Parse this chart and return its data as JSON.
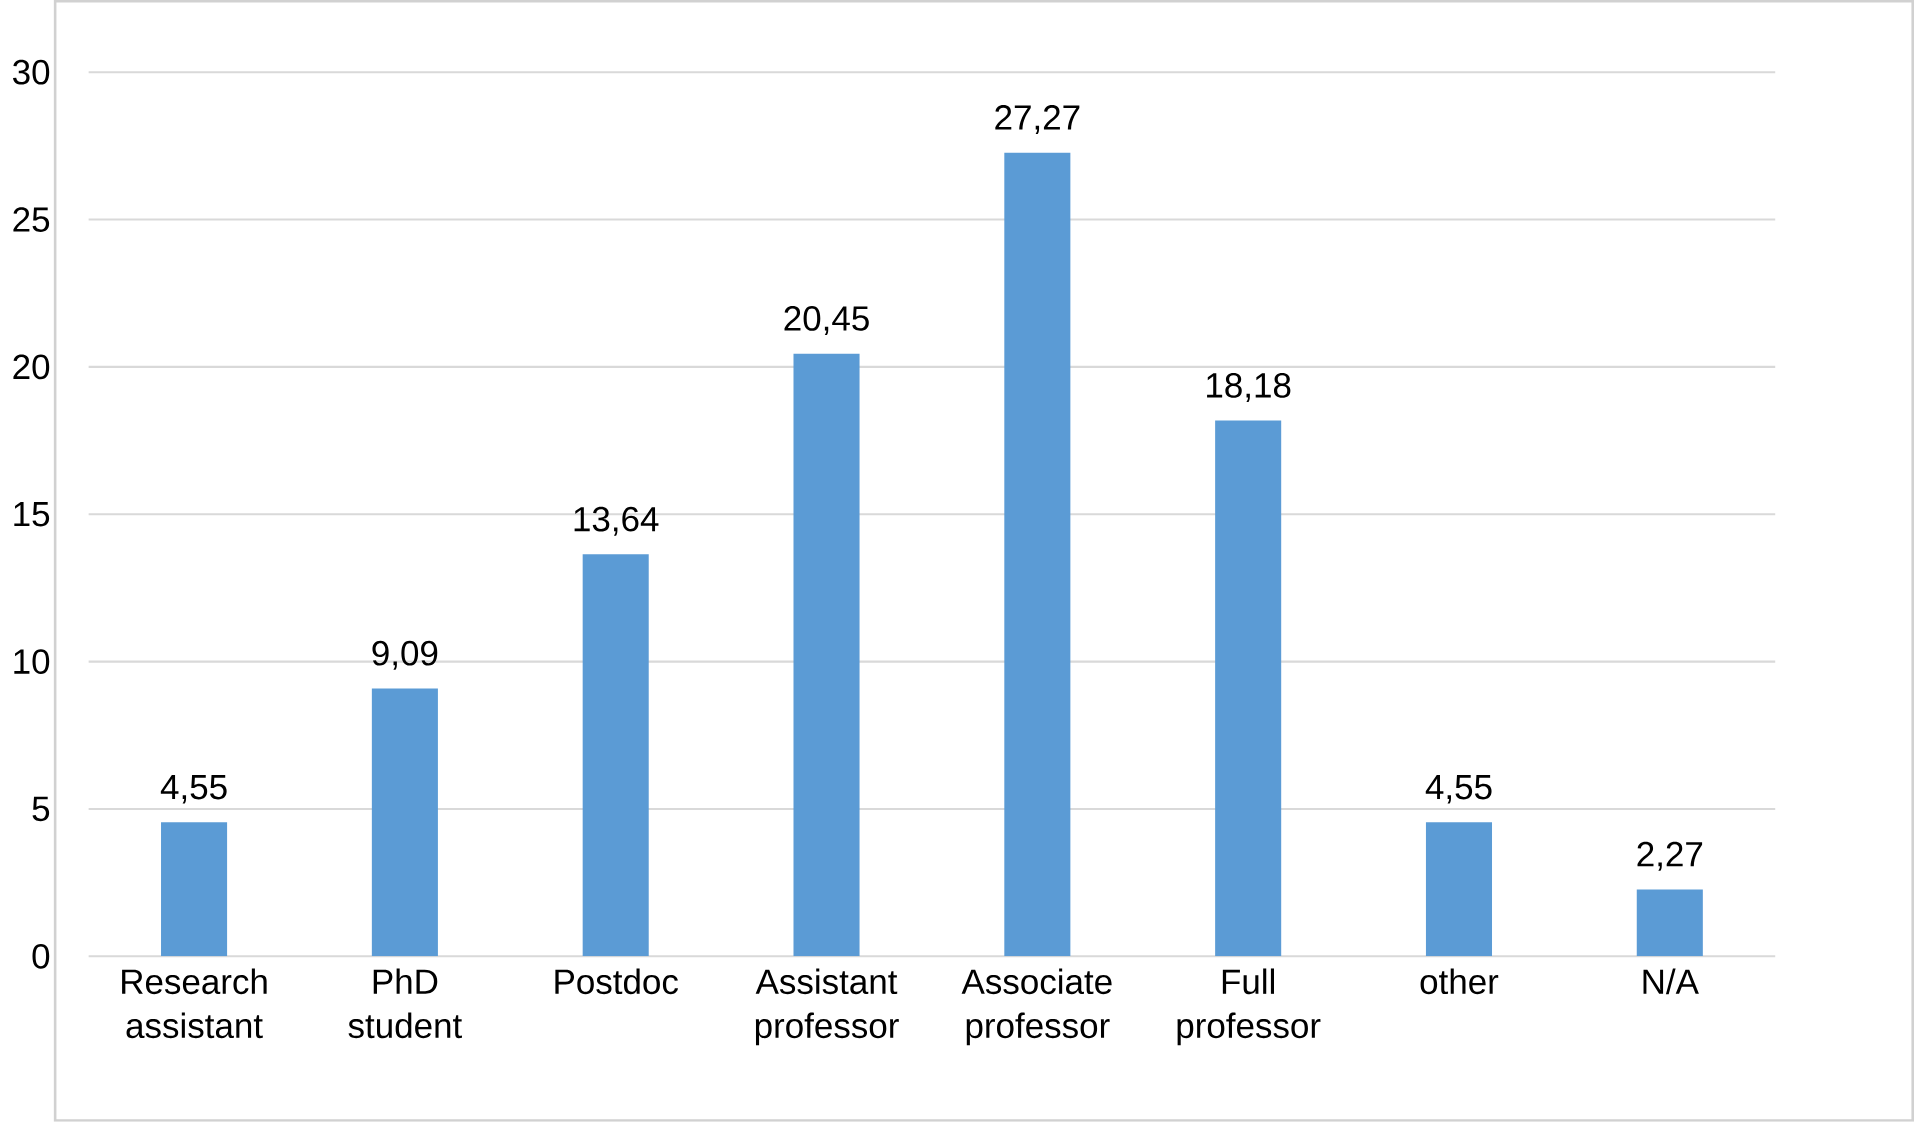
{
  "chart_data": {
    "type": "bar",
    "categories": [
      "Research assistant",
      "PhD student",
      "Postdoc",
      "Assistant professor",
      "Associate professor",
      "Full professor",
      "other",
      "N/A"
    ],
    "values": [
      4.55,
      9.09,
      13.64,
      20.45,
      27.27,
      18.18,
      4.55,
      2.27
    ],
    "value_labels": [
      "4,55",
      "9,09",
      "13,64",
      "20,45",
      "27,27",
      "18,18",
      "4,55",
      "2,27"
    ],
    "color": "#5b9bd5",
    "ylim": [
      0,
      30
    ],
    "yticks": [
      0,
      5,
      10,
      15,
      20,
      25,
      30
    ],
    "grid": "y"
  }
}
